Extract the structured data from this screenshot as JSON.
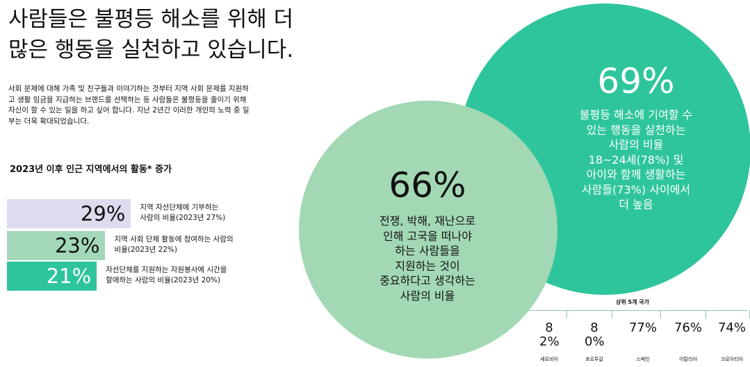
{
  "title_lines": [
    "사람들은 불평등 해소를 위해 더",
    "많은 행동을 실천하고 있습니다."
  ],
  "intro": "사회 문제에 대해 가족 및 친구들과 이야기하는 것부터 지역 사회 문제를 지원하고 생활 임금을 지급하는 브랜드를 선택하는 등 사람들은 불평등을 줄이기 위해 자신이 할 수 있는 일을 하고 싶어 합니다. 지난 2년간 이러한 개인의 노력 중 일부는 더욱 확대되었습니다.",
  "activity_chart": {
    "title": "2023년 이후 인근 지역에서의 활동* 증가",
    "values": [
      29,
      23,
      21
    ],
    "value_labels": [
      "29%",
      "23%",
      "21%"
    ],
    "colors": [
      "#dcdcee",
      "#a3d8b9",
      "#2fc59c"
    ],
    "label_colors": [
      "#111111",
      "#111111",
      "#ffffff"
    ],
    "descriptions": [
      [
        "지역 자선단체에 기부하는",
        "사람의 비율(2023년 27%)"
      ],
      [
        "지역 사회 단체 활동에 참여하는 사람의",
        "비율(2023년 22%)"
      ],
      [
        "자선단체를 지원하는 자원봉사에 시간을",
        "할애하는 사람의 비율(2023년 20%)"
      ]
    ]
  },
  "stats": [
    {
      "value_label": "66%",
      "lines": [
        "전쟁, 박해, 재난으로",
        "인해 고국을 떠나야",
        "하는 사람들을",
        "지원하는 것이",
        "중요하다고 생각하는",
        "사람의 비율"
      ],
      "color": "#a3d8b5",
      "text_color": "#111111"
    },
    {
      "value_label": "69%",
      "lines": [
        "불평등 해소에 기여할 수",
        "있는 행동을 실천하는",
        "사람의 비율",
        "18~24세(78%) 및",
        "아이와 함께 생활하는",
        "사람들(73%) 사이에서",
        "더 높음"
      ],
      "color": "#2fc59c",
      "text_color": "#ffffff"
    }
  ],
  "top_countries": {
    "title": "상위 5개 국가",
    "items": [
      {
        "value_label": "82%",
        "country": "세르비아"
      },
      {
        "value_label": "80%",
        "country": "포르투갈"
      },
      {
        "value_label": "77%",
        "country": "스페인"
      },
      {
        "value_label": "76%",
        "country": "이탈리아"
      },
      {
        "value_label": "74%",
        "country": "크로아티아"
      }
    ]
  }
}
